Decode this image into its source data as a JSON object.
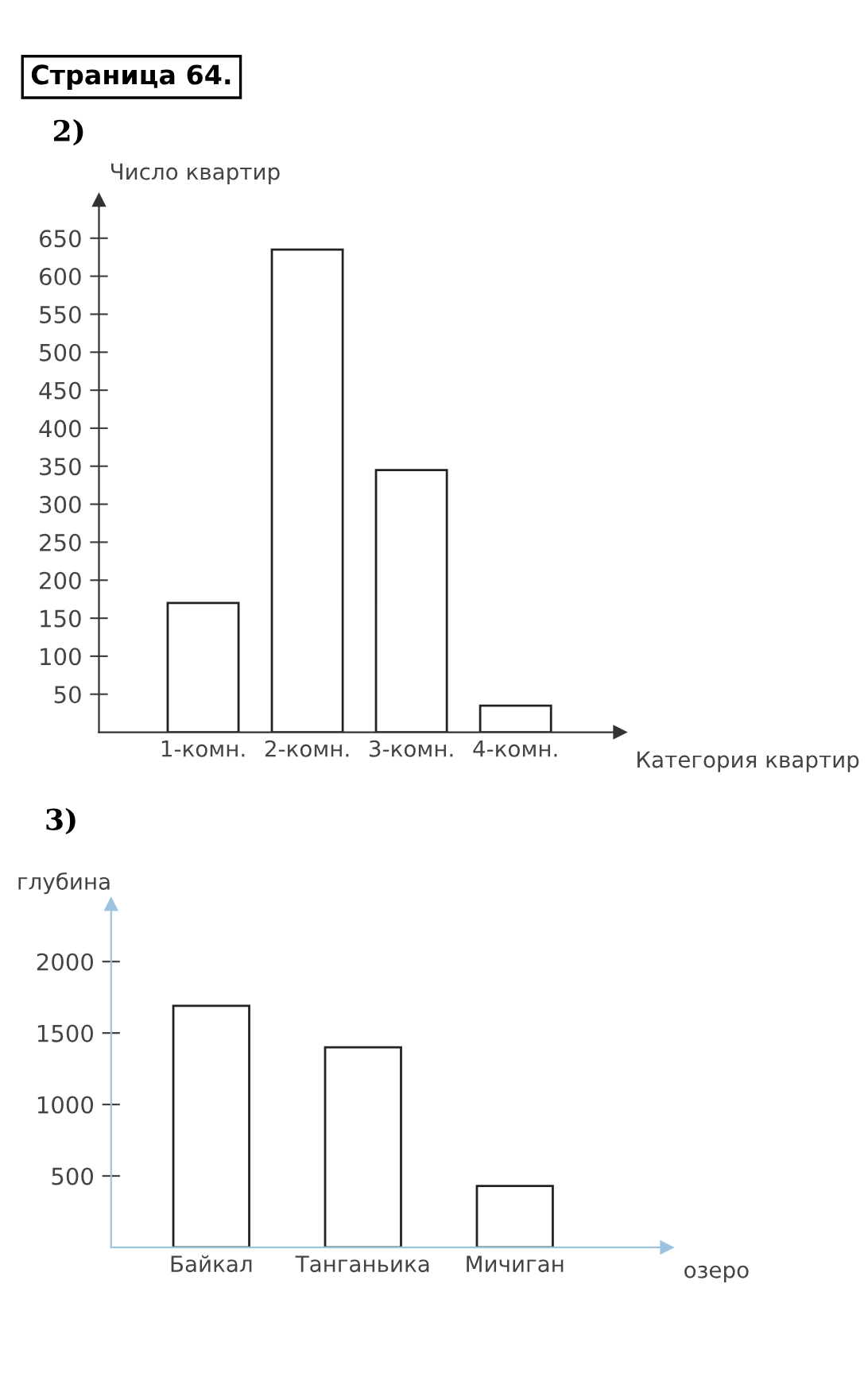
{
  "chart_data": [
    {
      "type": "bar",
      "title": "2)",
      "annotations": [
        "Страница 64."
      ],
      "ylabel": "Число квартир",
      "xlabel": "Категория квартир",
      "categories": [
        "1-комн.",
        "2-комн.",
        "3-комн.",
        "4-комн."
      ],
      "values": [
        170,
        635,
        345,
        35
      ],
      "color": "#ffffff",
      "ylim": [
        0,
        700
      ],
      "yticks": [
        50,
        100,
        150,
        200,
        250,
        300,
        350,
        400,
        450,
        500,
        550,
        600,
        650
      ],
      "grid": false
    },
    {
      "type": "bar",
      "title": "3)",
      "ylabel": "глубина",
      "xlabel": "озеро",
      "categories": [
        "Байкал",
        "Танганьика",
        "Мичиган"
      ],
      "values": [
        1690,
        1400,
        430
      ],
      "color": "#ffffff",
      "ylim": [
        0,
        2400
      ],
      "yticks": [
        500,
        1000,
        1500,
        2000
      ],
      "grid": false
    }
  ]
}
